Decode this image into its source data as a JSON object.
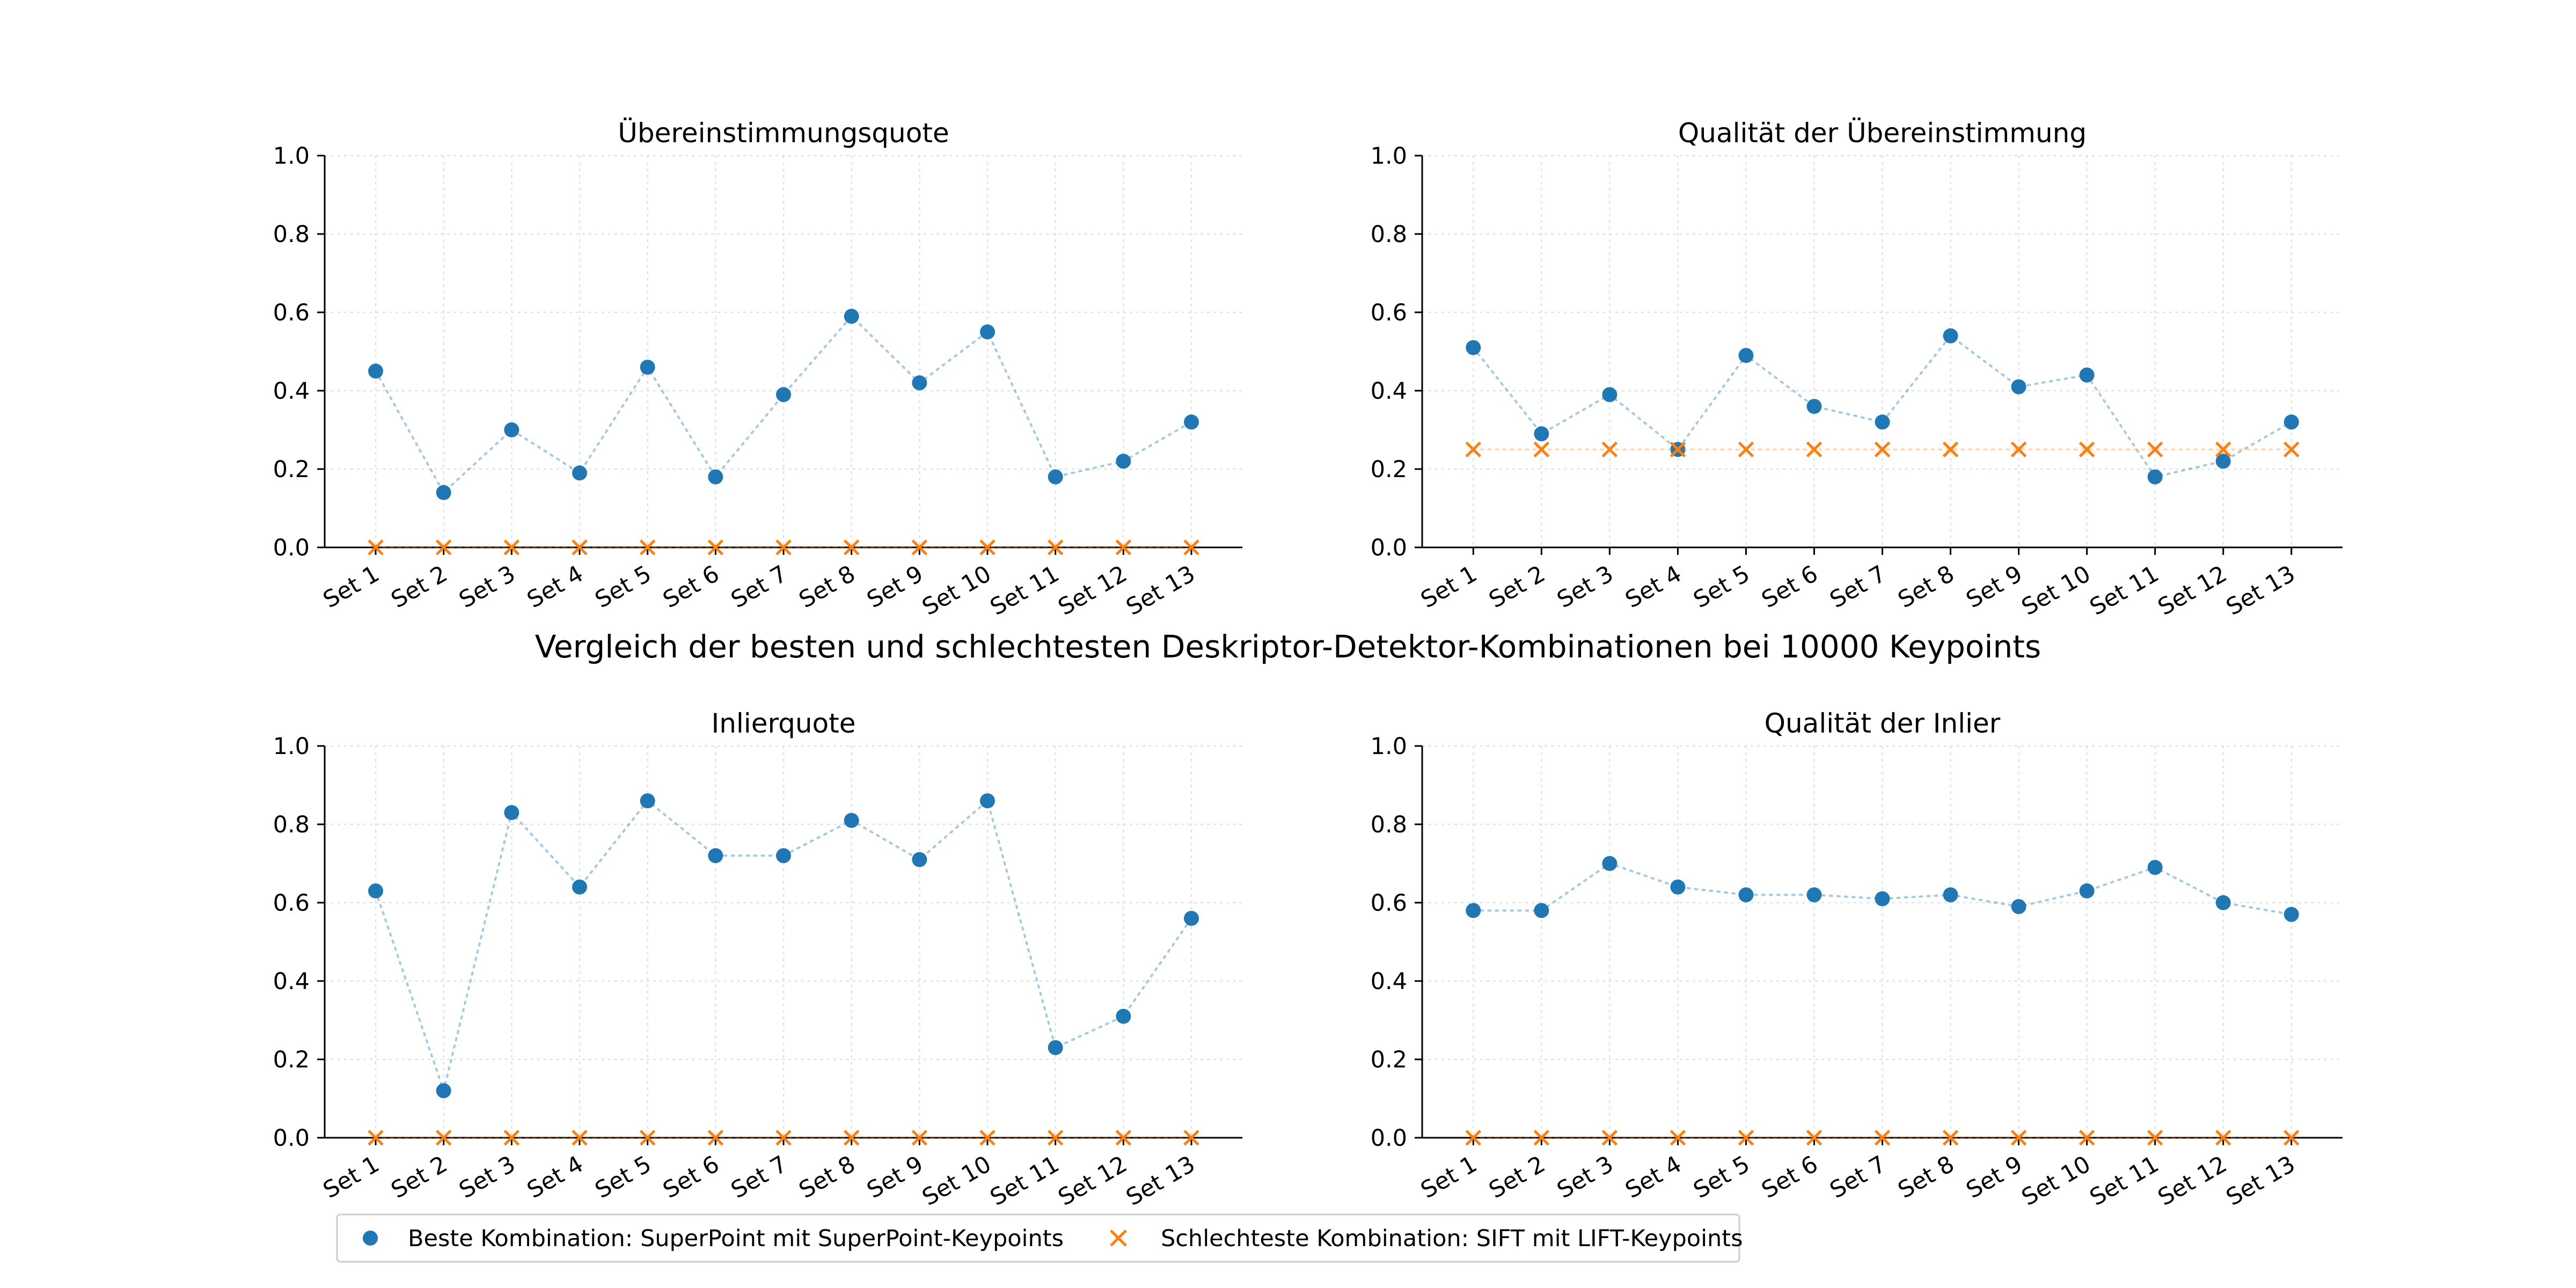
{
  "figure": {
    "suptitle": "Vergleich der besten und schlechtesten Deskriptor-Detektor-Kombinationen bei 10000 Keypoints"
  },
  "legend": {
    "placement": "bottom-left",
    "entries": [
      {
        "label": "Beste Kombination: SuperPoint mit SuperPoint-Keypoints",
        "marker": "circle-icon",
        "color": "#1f77b4"
      },
      {
        "label": "Schlechteste Kombination: SIFT mit LIFT-Keypoints",
        "marker": "x-icon",
        "color": "#ff7f0e"
      }
    ]
  },
  "chart_data": [
    {
      "type": "scatter",
      "title": "Übereinstimmungsquote",
      "categories": [
        "Set 1",
        "Set 2",
        "Set 3",
        "Set 4",
        "Set 5",
        "Set 6",
        "Set 7",
        "Set 8",
        "Set 9",
        "Set 10",
        "Set 11",
        "Set 12",
        "Set 13"
      ],
      "ylim": [
        0,
        1.0
      ],
      "yticks": [
        "0.0",
        "0.2",
        "0.4",
        "0.6",
        "0.8",
        "1.0"
      ],
      "grid": true,
      "series": [
        {
          "values": [
            0.45,
            0.14,
            0.3,
            0.19,
            0.46,
            0.18,
            0.39,
            0.59,
            0.42,
            0.55,
            0.18,
            0.22,
            0.32
          ],
          "marker": "circle",
          "color": "#1f77b4",
          "connect": "dotted"
        },
        {
          "values": [
            0,
            0,
            0,
            0,
            0,
            0,
            0,
            0,
            0,
            0,
            0,
            0,
            0
          ],
          "marker": "x",
          "color": "#ff7f0e",
          "connect": "dotted"
        }
      ]
    },
    {
      "type": "scatter",
      "title": "Qualität der Übereinstimmung",
      "categories": [
        "Set 1",
        "Set 2",
        "Set 3",
        "Set 4",
        "Set 5",
        "Set 6",
        "Set 7",
        "Set 8",
        "Set 9",
        "Set 10",
        "Set 11",
        "Set 12",
        "Set 13"
      ],
      "ylim": [
        0,
        1.0
      ],
      "yticks": [
        "0.0",
        "0.2",
        "0.4",
        "0.6",
        "0.8",
        "1.0"
      ],
      "grid": true,
      "series": [
        {
          "values": [
            0.51,
            0.29,
            0.39,
            0.25,
            0.49,
            0.36,
            0.32,
            0.54,
            0.41,
            0.44,
            0.18,
            0.22,
            0.32
          ],
          "marker": "circle",
          "color": "#1f77b4",
          "connect": "dotted"
        },
        {
          "values": [
            0.25,
            0.25,
            0.25,
            0.25,
            0.25,
            0.25,
            0.25,
            0.25,
            0.25,
            0.25,
            0.25,
            0.25,
            0.25
          ],
          "marker": "x",
          "color": "#ff7f0e",
          "connect": "dotted"
        }
      ]
    },
    {
      "type": "scatter",
      "title": "Inlierquote",
      "categories": [
        "Set 1",
        "Set 2",
        "Set 3",
        "Set 4",
        "Set 5",
        "Set 6",
        "Set 7",
        "Set 8",
        "Set 9",
        "Set 10",
        "Set 11",
        "Set 12",
        "Set 13"
      ],
      "ylim": [
        0,
        1.0
      ],
      "yticks": [
        "0.0",
        "0.2",
        "0.4",
        "0.6",
        "0.8",
        "1.0"
      ],
      "grid": true,
      "series": [
        {
          "values": [
            0.63,
            0.12,
            0.83,
            0.64,
            0.86,
            0.72,
            0.72,
            0.81,
            0.71,
            0.86,
            0.23,
            0.31,
            0.56
          ],
          "marker": "circle",
          "color": "#1f77b4",
          "connect": "dotted"
        },
        {
          "values": [
            0,
            0,
            0,
            0,
            0,
            0,
            0,
            0,
            0,
            0,
            0,
            0,
            0
          ],
          "marker": "x",
          "color": "#ff7f0e",
          "connect": "dotted"
        }
      ]
    },
    {
      "type": "scatter",
      "title": "Qualität der Inlier",
      "categories": [
        "Set 1",
        "Set 2",
        "Set 3",
        "Set 4",
        "Set 5",
        "Set 6",
        "Set 7",
        "Set 8",
        "Set 9",
        "Set 10",
        "Set 11",
        "Set 12",
        "Set 13"
      ],
      "ylim": [
        0,
        1.0
      ],
      "yticks": [
        "0.0",
        "0.2",
        "0.4",
        "0.6",
        "0.8",
        "1.0"
      ],
      "grid": true,
      "series": [
        {
          "values": [
            0.58,
            0.58,
            0.7,
            0.64,
            0.62,
            0.62,
            0.61,
            0.62,
            0.59,
            0.63,
            0.69,
            0.6,
            0.57
          ],
          "marker": "circle",
          "color": "#1f77b4",
          "connect": "dotted"
        },
        {
          "values": [
            0,
            0,
            0,
            0,
            0,
            0,
            0,
            0,
            0,
            0,
            0,
            0,
            0
          ],
          "marker": "x",
          "color": "#ff7f0e",
          "connect": "dotted"
        }
      ]
    }
  ]
}
